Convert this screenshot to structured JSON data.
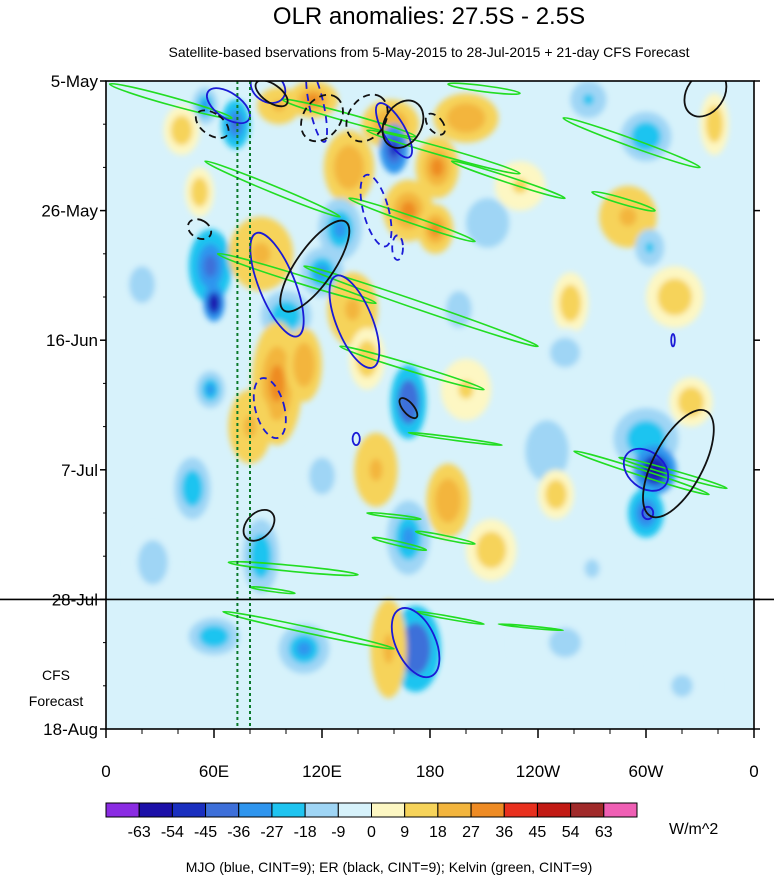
{
  "chart_data": {
    "type": "heatmap",
    "title": "OLR anomalies: 27.5S - 2.5S",
    "subtitle": "Satellite-based bservations from 5-May-2015 to 28-Jul-2015 + 21-day CFS Forecast",
    "x_ticks": [
      "0",
      "60E",
      "120E",
      "180",
      "120W",
      "60W",
      "0"
    ],
    "x_tick_lon": [
      0,
      60,
      120,
      180,
      240,
      300,
      360
    ],
    "y_ticks": [
      "5-May",
      "26-May",
      "16-Jun",
      "7-Jul",
      "28-Jul",
      "18-Aug"
    ],
    "y_tick_day": [
      0,
      21,
      42,
      63,
      84,
      105
    ],
    "xlim": [
      0,
      360
    ],
    "ylim_days": [
      0,
      105
    ],
    "observation_end": "28-Jul",
    "forecast_label": [
      "CFS",
      "Forecast"
    ],
    "colorbar": {
      "levels": [
        "-63",
        "-54",
        "-45",
        "-36",
        "-27",
        "-18",
        "-9",
        "0",
        "9",
        "18",
        "27",
        "36",
        "45",
        "54",
        "63"
      ],
      "colors": [
        "#8a2be2",
        "#1c10a8",
        "#1a2fbf",
        "#3d6fd9",
        "#2f95ee",
        "#1fc4f0",
        "#9fd5f5",
        "#d7f2fb",
        "#fdf7c3",
        "#f6d35a",
        "#f3b53d",
        "#ee8b24",
        "#e8301e",
        "#c21a14",
        "#a02a2a",
        "#ef5fb4"
      ],
      "units": "W/m^2"
    },
    "footnote": "MJO (blue, CINT=9); ER (black, CINT=9); Kelvin (green, CINT=9)",
    "reference_lines_lon": [
      73,
      80
    ],
    "anomaly_blobs": [
      {
        "lon": 55,
        "day": 4,
        "rlon": 7,
        "rday": 3,
        "v": -30
      },
      {
        "lon": 42,
        "day": 8,
        "rlon": 10,
        "rday": 4,
        "v": 14
      },
      {
        "lon": 72,
        "day": 7,
        "rlon": 8,
        "rday": 4,
        "v": -40
      },
      {
        "lon": 96,
        "day": 4,
        "rlon": 12,
        "rday": 3,
        "v": 20
      },
      {
        "lon": 115,
        "day": 3,
        "rlon": 14,
        "rday": 3,
        "v": 30
      },
      {
        "lon": 158,
        "day": 7,
        "rlon": 16,
        "rday": 4,
        "v": 26
      },
      {
        "lon": 200,
        "day": 6,
        "rlon": 18,
        "rday": 4,
        "v": 24
      },
      {
        "lon": 268,
        "day": 3,
        "rlon": 10,
        "rday": 3,
        "v": -20
      },
      {
        "lon": 300,
        "day": 9,
        "rlon": 14,
        "rday": 4,
        "v": -22
      },
      {
        "lon": 338,
        "day": 7,
        "rlon": 8,
        "rday": 5,
        "v": 16
      },
      {
        "lon": 135,
        "day": 14,
        "rlon": 14,
        "rday": 6,
        "v": 22
      },
      {
        "lon": 160,
        "day": 11,
        "rlon": 8,
        "rday": 4,
        "v": -50
      },
      {
        "lon": 184,
        "day": 14,
        "rlon": 12,
        "rday": 5,
        "v": 30
      },
      {
        "lon": 52,
        "day": 18,
        "rlon": 8,
        "rday": 4,
        "v": 12
      },
      {
        "lon": 230,
        "day": 17,
        "rlon": 14,
        "rday": 4,
        "v": 10
      },
      {
        "lon": 58,
        "day": 30,
        "rlon": 12,
        "rday": 6,
        "v": -40
      },
      {
        "lon": 86,
        "day": 28,
        "rlon": 18,
        "rday": 6,
        "v": 20
      },
      {
        "lon": 130,
        "day": 24,
        "rlon": 12,
        "rday": 5,
        "v": -28
      },
      {
        "lon": 168,
        "day": 21,
        "rlon": 14,
        "rday": 5,
        "v": 28
      },
      {
        "lon": 183,
        "day": 24,
        "rlon": 10,
        "rday": 4,
        "v": 30
      },
      {
        "lon": 212,
        "day": 23,
        "rlon": 12,
        "rday": 4,
        "v": -18
      },
      {
        "lon": 290,
        "day": 22,
        "rlon": 16,
        "rday": 5,
        "v": 18
      },
      {
        "lon": 302,
        "day": 27,
        "rlon": 8,
        "rday": 3,
        "v": -20
      },
      {
        "lon": 120,
        "day": 31,
        "rlon": 12,
        "rday": 4,
        "v": -30
      },
      {
        "lon": 20,
        "day": 33,
        "rlon": 12,
        "rday": 5,
        "v": -14
      },
      {
        "lon": 60,
        "day": 36,
        "rlon": 6,
        "rday": 3,
        "v": -62
      },
      {
        "lon": 100,
        "day": 38,
        "rlon": 14,
        "rday": 4,
        "v": -26
      },
      {
        "lon": 137,
        "day": 37,
        "rlon": 14,
        "rday": 6,
        "v": 18
      },
      {
        "lon": 196,
        "day": 37,
        "rlon": 12,
        "rday": 5,
        "v": -16
      },
      {
        "lon": 258,
        "day": 36,
        "rlon": 10,
        "rday": 5,
        "v": 12
      },
      {
        "lon": 316,
        "day": 35,
        "rlon": 16,
        "rday": 5,
        "v": 14
      },
      {
        "lon": 95,
        "day": 49,
        "rlon": 14,
        "rday": 10,
        "v": 30
      },
      {
        "lon": 110,
        "day": 46,
        "rlon": 10,
        "rday": 6,
        "v": 22
      },
      {
        "lon": 58,
        "day": 50,
        "rlon": 8,
        "rday": 3,
        "v": -30
      },
      {
        "lon": 168,
        "day": 52,
        "rlon": 10,
        "rday": 6,
        "v": -44
      },
      {
        "lon": 145,
        "day": 45,
        "rlon": 10,
        "rday": 5,
        "v": 16
      },
      {
        "lon": 200,
        "day": 50,
        "rlon": 14,
        "rday": 5,
        "v": 10
      },
      {
        "lon": 255,
        "day": 44,
        "rlon": 14,
        "rday": 4,
        "v": -12
      },
      {
        "lon": 300,
        "day": 58,
        "rlon": 18,
        "rday": 5,
        "v": -26
      },
      {
        "lon": 305,
        "day": 63,
        "rlon": 12,
        "rday": 4,
        "v": -56
      },
      {
        "lon": 325,
        "day": 52,
        "rlon": 12,
        "rday": 4,
        "v": 12
      },
      {
        "lon": 80,
        "day": 56,
        "rlon": 12,
        "rday": 6,
        "v": 18
      },
      {
        "lon": 150,
        "day": 63,
        "rlon": 12,
        "rday": 6,
        "v": 20
      },
      {
        "lon": 245,
        "day": 60,
        "rlon": 12,
        "rday": 5,
        "v": -18
      },
      {
        "lon": 48,
        "day": 66,
        "rlon": 10,
        "rday": 5,
        "v": -24
      },
      {
        "lon": 120,
        "day": 64,
        "rlon": 12,
        "rday": 5,
        "v": -14
      },
      {
        "lon": 190,
        "day": 68,
        "rlon": 12,
        "rday": 6,
        "v": 22
      },
      {
        "lon": 250,
        "day": 67,
        "rlon": 10,
        "rday": 4,
        "v": 14
      },
      {
        "lon": 300,
        "day": 70,
        "rlon": 10,
        "rday": 4,
        "v": -40
      },
      {
        "lon": 86,
        "day": 77,
        "rlon": 10,
        "rday": 6,
        "v": -26
      },
      {
        "lon": 168,
        "day": 74,
        "rlon": 12,
        "rday": 6,
        "v": -28
      },
      {
        "lon": 214,
        "day": 76,
        "rlon": 14,
        "rday": 5,
        "v": 16
      },
      {
        "lon": 270,
        "day": 79,
        "rlon": 14,
        "rday": 5,
        "v": -10
      },
      {
        "lon": 26,
        "day": 78,
        "rlon": 14,
        "rday": 6,
        "v": -12
      },
      {
        "lon": 60,
        "day": 90,
        "rlon": 14,
        "rday": 3,
        "v": -26
      },
      {
        "lon": 110,
        "day": 92,
        "rlon": 14,
        "rday": 4,
        "v": -28
      },
      {
        "lon": 172,
        "day": 92,
        "rlon": 14,
        "rday": 7,
        "v": -44
      },
      {
        "lon": 157,
        "day": 92,
        "rlon": 10,
        "rday": 8,
        "v": 20
      },
      {
        "lon": 255,
        "day": 91,
        "rlon": 30,
        "rday": 8,
        "v": -10
      },
      {
        "lon": 320,
        "day": 98,
        "rlon": 20,
        "rday": 6,
        "v": -10
      },
      {
        "lon": 20,
        "day": 92,
        "rlon": 20,
        "rday": 5,
        "v": -9
      }
    ],
    "kelvin_contours": [
      {
        "lon1": 2,
        "day1": 0.5,
        "lon2": 70,
        "day2": 6,
        "w": 4
      },
      {
        "lon1": 98,
        "day1": 3,
        "lon2": 172,
        "day2": 9,
        "w": 4
      },
      {
        "lon1": 190,
        "day1": 0.5,
        "lon2": 230,
        "day2": 2,
        "w": 3
      },
      {
        "lon1": 145,
        "day1": 8,
        "lon2": 230,
        "day2": 15,
        "w": 4
      },
      {
        "lon1": 192,
        "day1": 13,
        "lon2": 255,
        "day2": 19,
        "w": 3
      },
      {
        "lon1": 254,
        "day1": 6,
        "lon2": 330,
        "day2": 14,
        "w": 4
      },
      {
        "lon1": 270,
        "day1": 18,
        "lon2": 305,
        "day2": 21,
        "w": 3
      },
      {
        "lon1": 55,
        "day1": 13,
        "lon2": 130,
        "day2": 22,
        "w": 3.5
      },
      {
        "lon1": 135,
        "day1": 19,
        "lon2": 205,
        "day2": 26,
        "w": 3.5
      },
      {
        "lon1": 62,
        "day1": 28,
        "lon2": 150,
        "day2": 36,
        "w": 4
      },
      {
        "lon1": 110,
        "day1": 30,
        "lon2": 240,
        "day2": 43,
        "w": 4
      },
      {
        "lon1": 130,
        "day1": 43,
        "lon2": 210,
        "day2": 50,
        "w": 3.5
      },
      {
        "lon1": 168,
        "day1": 57,
        "lon2": 220,
        "day2": 59,
        "w": 1.5
      },
      {
        "lon1": 260,
        "day1": 60,
        "lon2": 335,
        "day2": 67,
        "w": 3
      },
      {
        "lon1": 285,
        "day1": 61,
        "lon2": 345,
        "day2": 66,
        "w": 2.5
      },
      {
        "lon1": 145,
        "day1": 70,
        "lon2": 175,
        "day2": 71,
        "w": 1.5
      },
      {
        "lon1": 172,
        "day1": 73,
        "lon2": 205,
        "day2": 75,
        "w": 2
      },
      {
        "lon1": 148,
        "day1": 74,
        "lon2": 178,
        "day2": 76,
        "w": 2
      },
      {
        "lon1": 68,
        "day1": 78,
        "lon2": 140,
        "day2": 80,
        "w": 3
      },
      {
        "lon1": 80,
        "day1": 82,
        "lon2": 105,
        "day2": 83,
        "w": 1.5
      },
      {
        "lon1": 65,
        "day1": 86,
        "lon2": 160,
        "day2": 92,
        "w": 3
      },
      {
        "lon1": 172,
        "day1": 86,
        "lon2": 210,
        "day2": 88,
        "w": 1.5
      },
      {
        "lon1": 218,
        "day1": 88,
        "lon2": 254,
        "day2": 89,
        "w": 1
      }
    ],
    "mjo_contours": [
      {
        "lon": 68,
        "day": 4,
        "rlon": 7,
        "rday": 4,
        "rot": -55,
        "dashed": false
      },
      {
        "lon": 90,
        "day": 1,
        "rlon": 8,
        "rday": 3,
        "rot": -55,
        "dashed": false
      },
      {
        "lon": 117,
        "day": 4,
        "rlon": 4,
        "rday": 6,
        "rot": -12,
        "dashed": true
      },
      {
        "lon": 160,
        "day": 8,
        "rlon": 6,
        "rday": 5,
        "rot": -30,
        "dashed": false
      },
      {
        "lon": 150,
        "day": 21,
        "rlon": 7,
        "rday": 6,
        "rot": -15,
        "dashed": true
      },
      {
        "lon": 162,
        "day": 27,
        "rlon": 3,
        "rday": 2,
        "rot": 0,
        "dashed": true
      },
      {
        "lon": 95,
        "day": 33,
        "rlon": 10,
        "rday": 9,
        "rot": -22,
        "dashed": false
      },
      {
        "lon": 138,
        "day": 39,
        "rlon": 10,
        "rday": 8,
        "rot": -22,
        "dashed": false
      },
      {
        "lon": 91,
        "day": 53,
        "rlon": 8,
        "rday": 5,
        "rot": -15,
        "dashed": true
      },
      {
        "lon": 139,
        "day": 58,
        "rlon": 2,
        "rday": 1,
        "rot": 0,
        "dashed": false
      },
      {
        "lon": 300,
        "day": 63,
        "rlon": 10,
        "rday": 4,
        "rot": -50,
        "dashed": false
      },
      {
        "lon": 301,
        "day": 70,
        "rlon": 3,
        "rday": 1,
        "rot": 0,
        "dashed": false
      },
      {
        "lon": 172,
        "day": 91,
        "rlon": 11,
        "rday": 6,
        "rot": -25,
        "dashed": false
      },
      {
        "lon": 315,
        "day": 42,
        "rlon": 1,
        "rday": 1,
        "rot": 0,
        "dashed": false
      }
    ],
    "er_contours": [
      {
        "lon": 59,
        "day": 7,
        "rlon": 6,
        "rday": 3,
        "rot": -55,
        "dashed": true
      },
      {
        "lon": 92,
        "day": 2,
        "rlon": 5,
        "rday": 3,
        "rot": -55,
        "dashed": false
      },
      {
        "lon": 120,
        "day": 6,
        "rlon": 14,
        "rday": 3,
        "rot": -55,
        "dashed": true
      },
      {
        "lon": 145,
        "day": 6,
        "rlon": 14,
        "rday": 3,
        "rot": -58,
        "dashed": true
      },
      {
        "lon": 165,
        "day": 7,
        "rlon": 14,
        "rday": 3,
        "rot": -60,
        "dashed": false
      },
      {
        "lon": 183,
        "day": 7,
        "rlon": 4,
        "rday": 2,
        "rot": -40,
        "dashed": true
      },
      {
        "lon": 333,
        "day": 2,
        "rlon": 14,
        "rday": 3,
        "rot": -55,
        "dashed": false
      },
      {
        "lon": 52,
        "day": 24,
        "rlon": 5,
        "rday": 2,
        "rot": -60,
        "dashed": true
      },
      {
        "lon": 116,
        "day": 30,
        "rlon": 30,
        "rday": 3,
        "rot": -55,
        "dashed": false
      },
      {
        "lon": 168,
        "day": 53,
        "rlon": 3,
        "rday": 2,
        "rot": -40,
        "dashed": false
      },
      {
        "lon": 85,
        "day": 72,
        "rlon": 10,
        "rday": 2,
        "rot": -45,
        "dashed": false
      },
      {
        "lon": 318,
        "day": 62,
        "rlon": 33,
        "rday": 4,
        "rot": -62,
        "dashed": false
      }
    ]
  }
}
